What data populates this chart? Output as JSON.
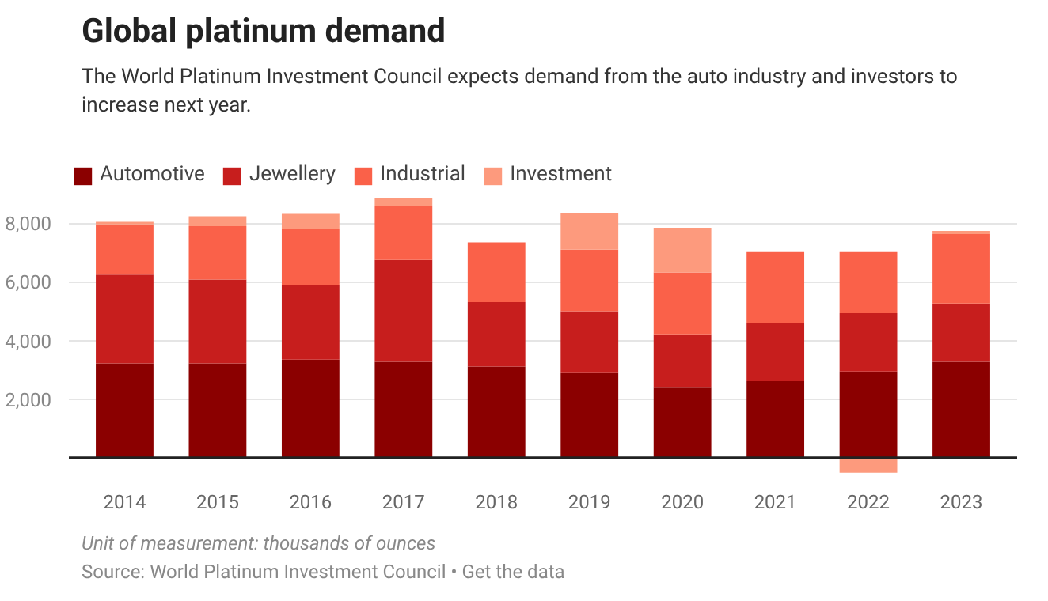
{
  "chart_data": {
    "type": "bar",
    "stacked": true,
    "title": "Global platinum demand",
    "subtitle": "The World Platinum Investment Council expects demand from the auto industry and investors to increase next year.",
    "categories": [
      "2014",
      "2015",
      "2016",
      "2017",
      "2018",
      "2019",
      "2020",
      "2021",
      "2022",
      "2023"
    ],
    "series": [
      {
        "name": "Automotive",
        "color": "#8b0000",
        "values": [
          3220,
          3220,
          3350,
          3270,
          3110,
          2890,
          2390,
          2610,
          2940,
          3270
        ]
      },
      {
        "name": "Jewellery",
        "color": "#c71e1d",
        "values": [
          3030,
          2860,
          2530,
          3480,
          2200,
          2110,
          1820,
          1990,
          1990,
          1990
        ]
      },
      {
        "name": "Industrial",
        "color": "#fa6149",
        "values": [
          1710,
          1820,
          1930,
          1830,
          2040,
          2100,
          2110,
          2420,
          2090,
          2370
        ]
      },
      {
        "name": "Investment",
        "color": "#fd9a7d",
        "values": [
          90,
          340,
          540,
          280,
          0,
          1260,
          1530,
          0,
          -510,
          110
        ]
      }
    ],
    "ylim": [
      -600,
      8900
    ],
    "yticks": [
      {
        "value": 2000,
        "label": "2,000"
      },
      {
        "value": 4000,
        "label": "4,000"
      },
      {
        "value": 6000,
        "label": "6,000"
      },
      {
        "value": 8000,
        "label": "8,000"
      }
    ],
    "grid": "y",
    "legend": "top left",
    "annotations": [
      "Unit of measurement: thousands of ounces",
      "Source: World Platinum Investment Council • Get the data"
    ]
  }
}
